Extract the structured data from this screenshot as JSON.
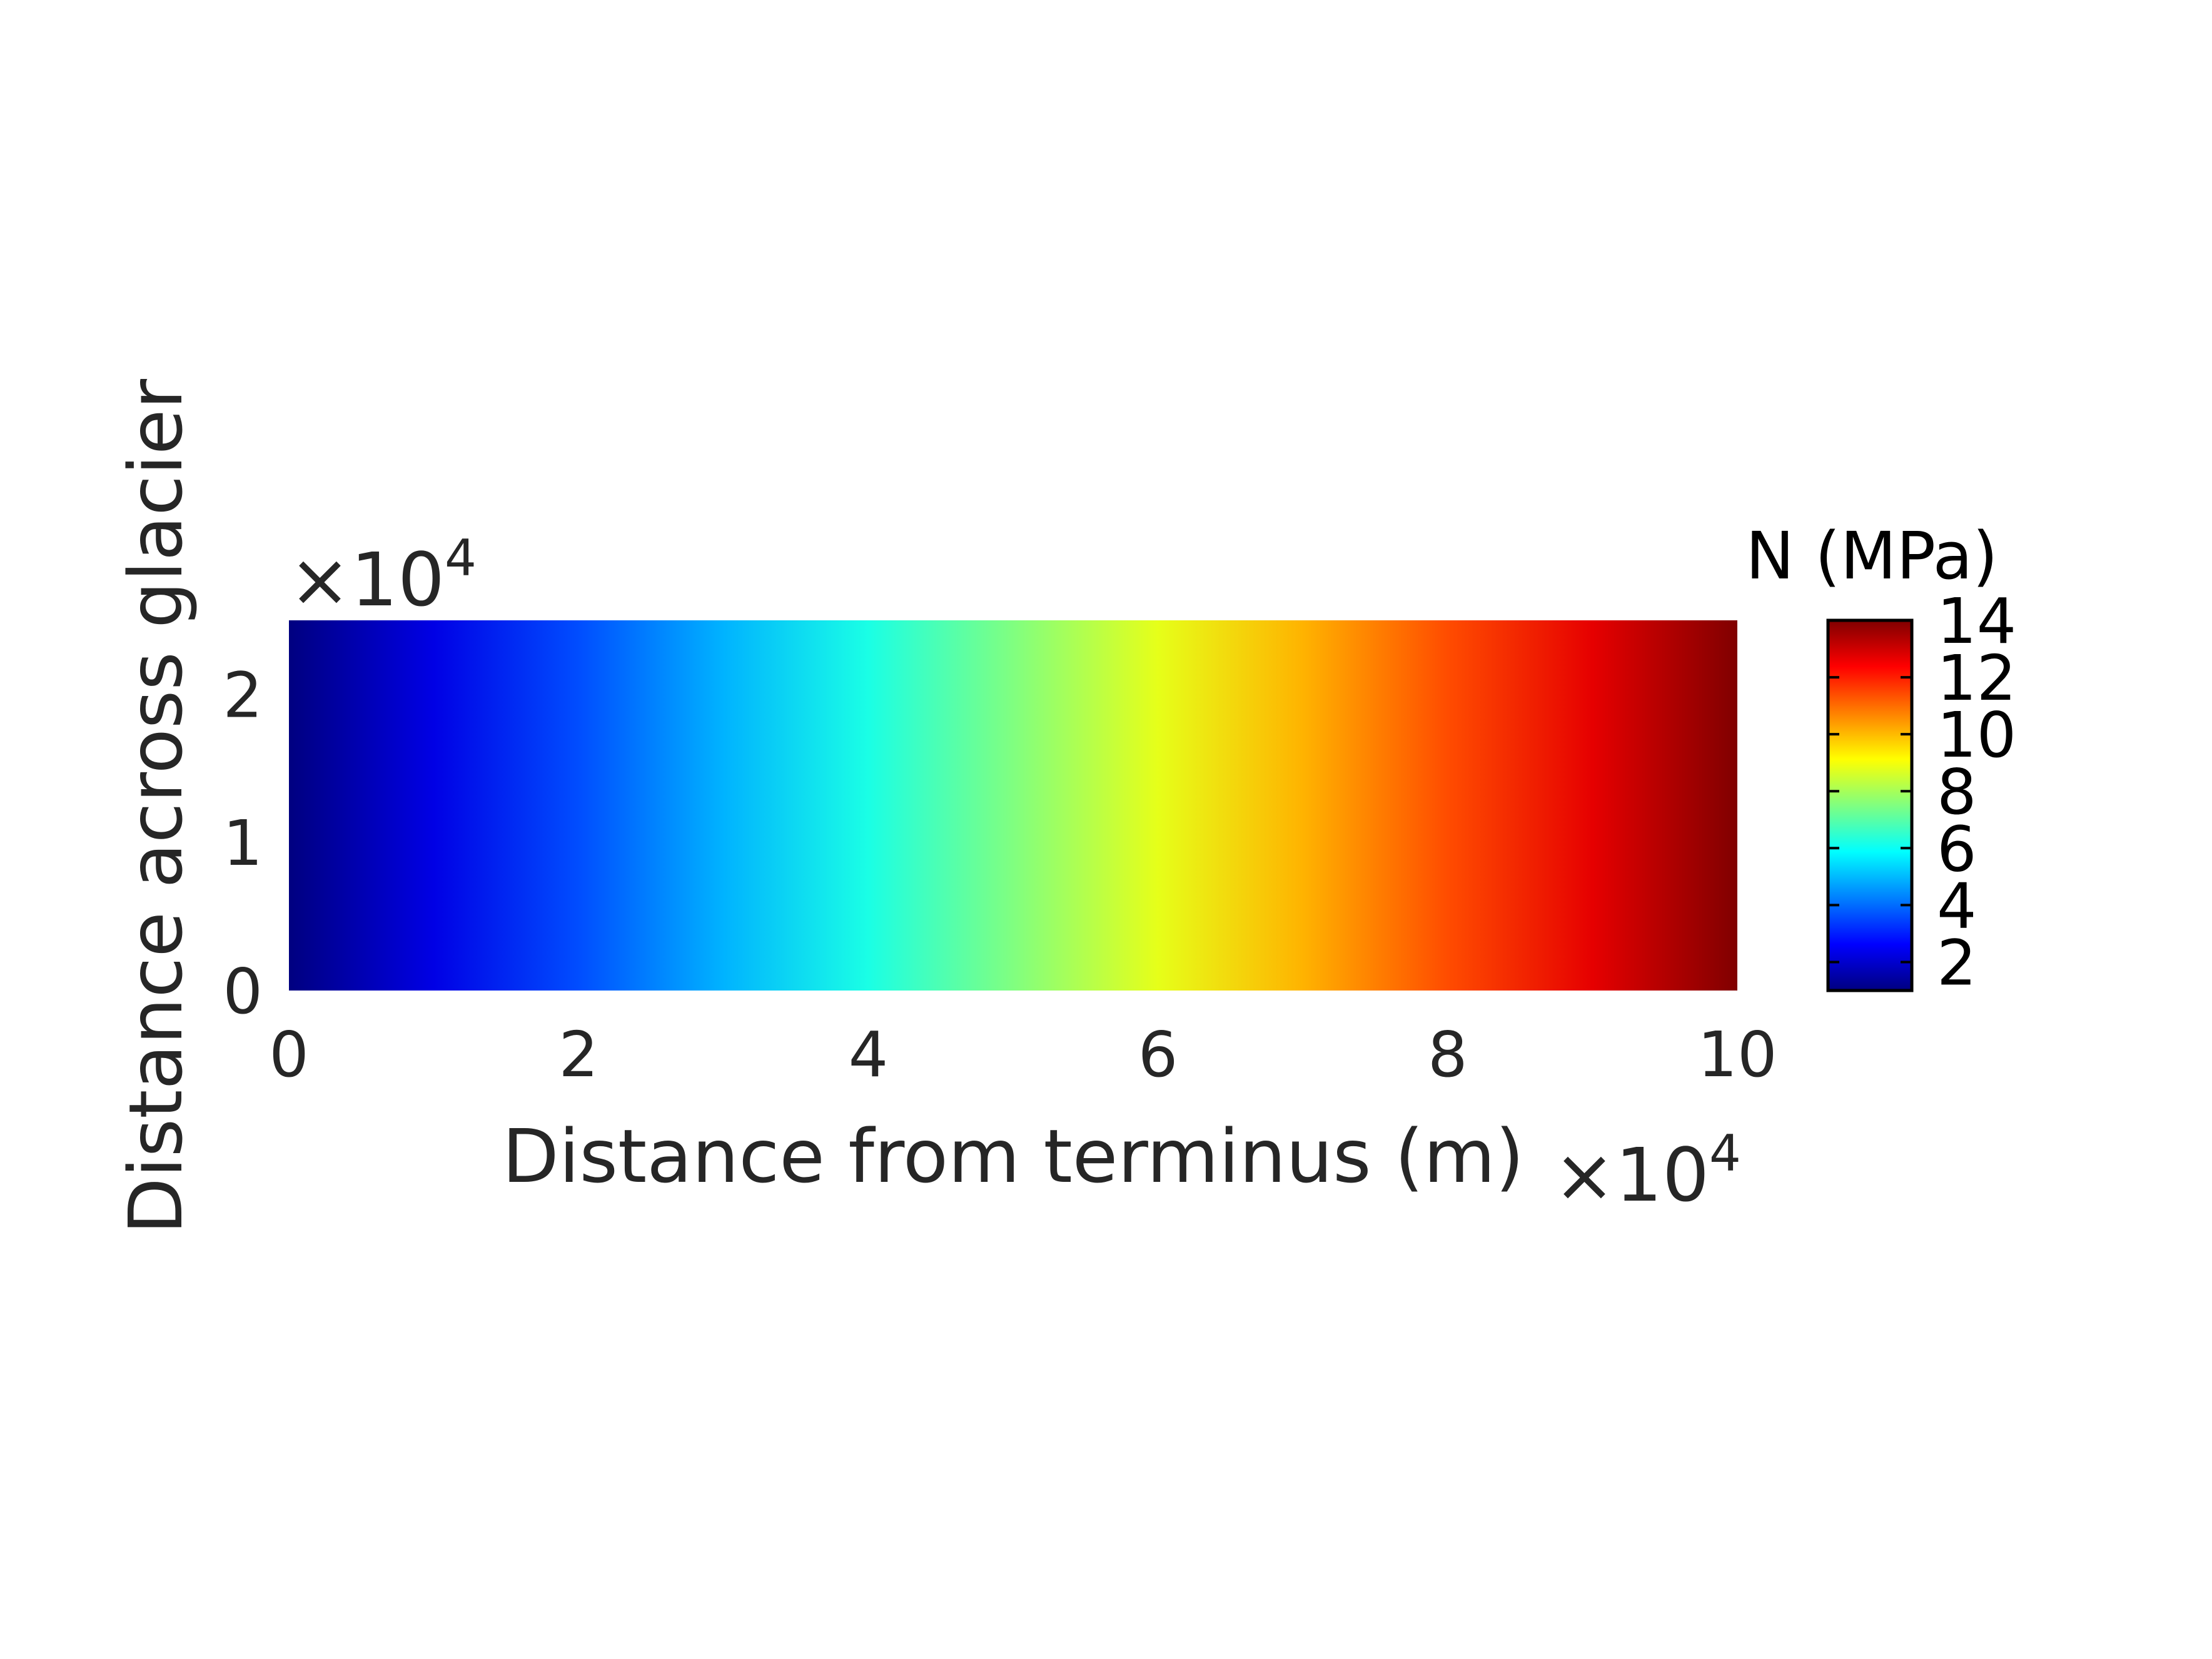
{
  "chart_data": {
    "type": "heatmap",
    "title": "",
    "xlabel": "Distance from terminus (m)",
    "ylabel": "Distance across glacier",
    "x_multiplier": "×10",
    "x_multiplier_exp": "4",
    "y_multiplier": "×10",
    "y_multiplier_exp": "4",
    "xlim": [
      0,
      100000
    ],
    "ylim": [
      0,
      25000
    ],
    "x_ticks": [
      0,
      20000,
      40000,
      60000,
      80000,
      100000
    ],
    "x_tick_labels": [
      "0",
      "2",
      "4",
      "6",
      "8",
      "10"
    ],
    "y_ticks": [
      0,
      10000,
      20000
    ],
    "y_tick_labels": [
      "0",
      "1",
      "2"
    ],
    "field": {
      "description_var": "N",
      "varies_along": "x",
      "x": [
        0,
        10000,
        20000,
        30000,
        40000,
        50000,
        60000,
        70000,
        80000,
        90000,
        100000
      ],
      "values": [
        1,
        2.3,
        3.6,
        4.9,
        6.2,
        7.5,
        8.8,
        10.1,
        11.4,
        12.7,
        14
      ]
    },
    "colormap": "jet",
    "colorbar": {
      "title": "N (MPa)",
      "range": [
        1,
        14
      ],
      "ticks": [
        2,
        4,
        6,
        8,
        10,
        12,
        14
      ],
      "tick_labels": [
        "2",
        "4",
        "6",
        "8",
        "10",
        "12",
        "14"
      ]
    }
  }
}
